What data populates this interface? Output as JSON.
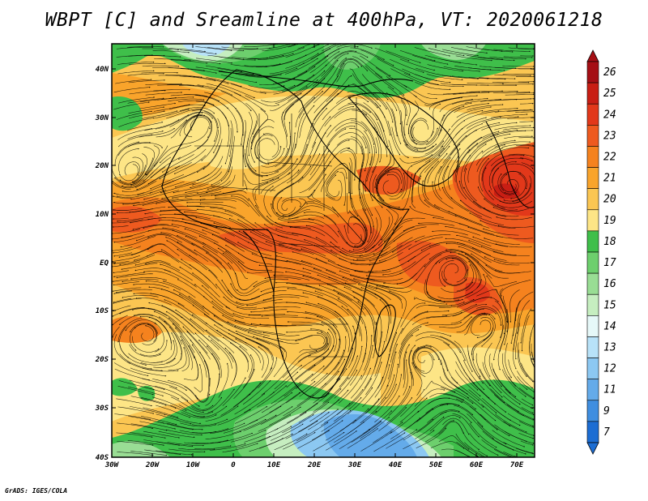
{
  "title": "WBPT [C] and Sreamline at 400hPa, VT: 2020061218",
  "credit": "GrADS: IGES/COLA",
  "map": {
    "lon_labels": [
      "30W",
      "20W",
      "10W",
      "0",
      "10E",
      "20E",
      "30E",
      "40E",
      "50E",
      "60E",
      "70E"
    ],
    "lat_labels": [
      "40N",
      "30N",
      "20N",
      "10N",
      "EQ",
      "10S",
      "20S",
      "30S",
      "40S"
    ],
    "lon_range": [
      -30,
      75
    ],
    "lat_range": [
      -40,
      45
    ],
    "variable": "WBPT [C] (shaded) with 400hPa streamlines"
  },
  "colorbar": {
    "labels": [
      "26",
      "25",
      "24",
      "23",
      "22",
      "21",
      "20",
      "19",
      "18",
      "17",
      "16",
      "15",
      "14",
      "13",
      "12",
      "11",
      "9",
      "7"
    ],
    "colors": [
      "#a50f15",
      "#c81e14",
      "#e2381a",
      "#ee5a1f",
      "#f5821e",
      "#f9a42b",
      "#fbc652",
      "#fde586",
      "#3fbf4a",
      "#6dcf6d",
      "#99dd94",
      "#c6eec0",
      "#e6f8f8",
      "#b8e2f8",
      "#8cc8f2",
      "#64abea",
      "#3f8ee0",
      "#1c6dd3"
    ]
  }
}
